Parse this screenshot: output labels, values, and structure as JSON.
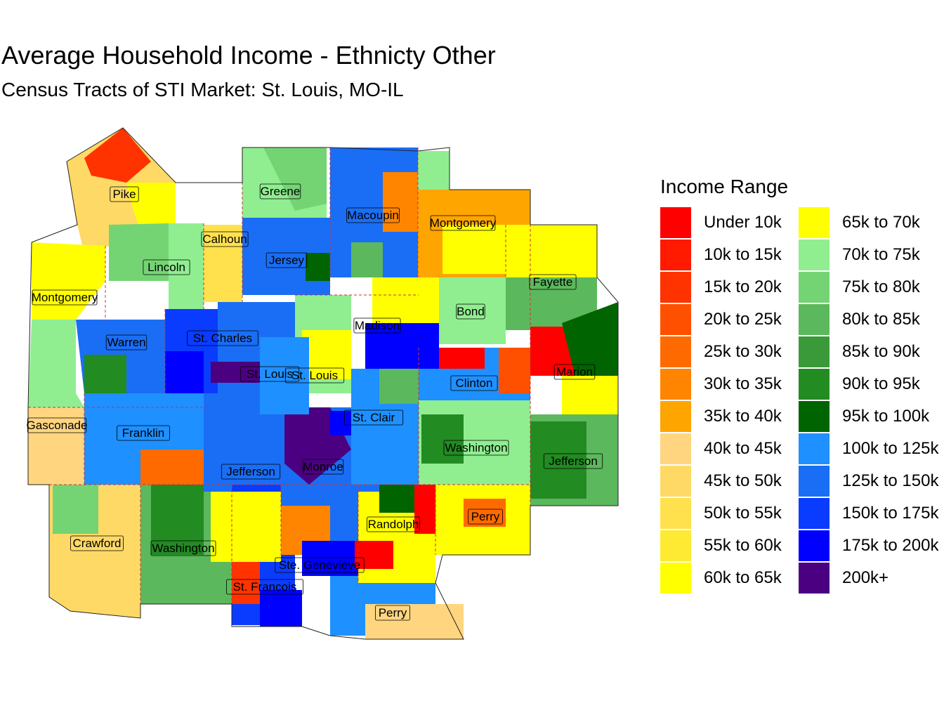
{
  "title": "Average Household Income - Ethnicty Other",
  "subtitle": "Census Tracts of STI Market: St. Louis, MO-IL",
  "legend": {
    "title": "Income Range",
    "items": [
      {
        "label": "Under 10k",
        "color": "#FF0000"
      },
      {
        "label": "10k to 15k",
        "color": "#FF1A00"
      },
      {
        "label": "15k to 20k",
        "color": "#FF3300"
      },
      {
        "label": "20k to 25k",
        "color": "#FF5000"
      },
      {
        "label": "25k to 30k",
        "color": "#FF6A00"
      },
      {
        "label": "30k to 35k",
        "color": "#FF8400"
      },
      {
        "label": "35k to 40k",
        "color": "#FFA500"
      },
      {
        "label": "40k to 45k",
        "color": "#FFD580"
      },
      {
        "label": "45k to 50k",
        "color": "#FFD966"
      },
      {
        "label": "50k to 55k",
        "color": "#FFE14D"
      },
      {
        "label": "55k to 60k",
        "color": "#FFEA33"
      },
      {
        "label": "60k to 65k",
        "color": "#FFFF00"
      },
      {
        "label": "65k to 70k",
        "color": "#FFFF00"
      },
      {
        "label": "70k to 75k",
        "color": "#90EE90"
      },
      {
        "label": "75k to 80k",
        "color": "#74D474"
      },
      {
        "label": "80k to 85k",
        "color": "#5CB85C"
      },
      {
        "label": "85k to 90k",
        "color": "#3A9A3A"
      },
      {
        "label": "90k to 95k",
        "color": "#228B22"
      },
      {
        "label": "95k to 100k",
        "color": "#006400"
      },
      {
        "label": "100k to 125k",
        "color": "#1E90FF"
      },
      {
        "label": "125k to 150k",
        "color": "#1A6EF5"
      },
      {
        "label": "150k to 175k",
        "color": "#0A3CFF"
      },
      {
        "label": "175k to 200k",
        "color": "#0000FF"
      },
      {
        "label": "200k+",
        "color": "#4B0082"
      }
    ]
  },
  "county_labels": [
    "Pike",
    "Greene",
    "Macoupin",
    "Montgomery",
    "Calhoun",
    "Lincoln",
    "Jersey",
    "Montgomery",
    "Fayette",
    "Bond",
    "Madison",
    "Warren",
    "St. Charles",
    "St. Louis",
    "St. Louis",
    "Clinton",
    "Marion",
    "Gasconade",
    "Franklin",
    "St. Clair",
    "Washington",
    "Jefferson",
    "Jefferson",
    "Monroe",
    "Perry",
    "Randolph",
    "Crawford",
    "Washington",
    "Ste. Genevieve",
    "St. Francois",
    "Perry"
  ]
}
